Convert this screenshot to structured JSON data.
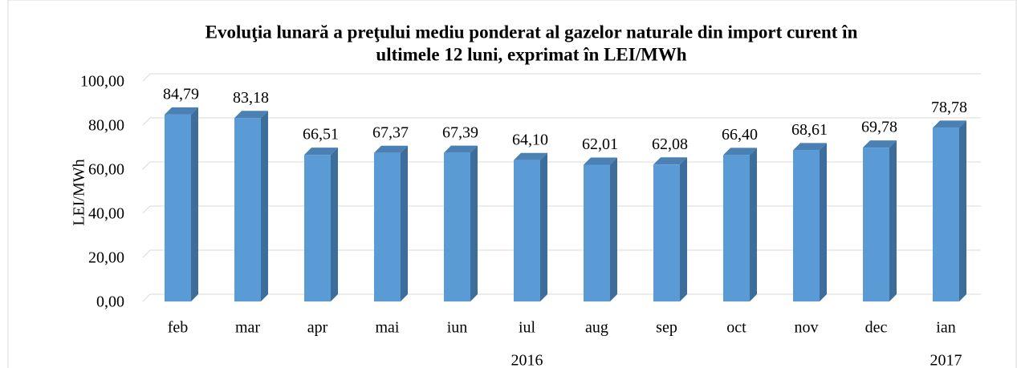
{
  "chart_data": {
    "type": "bar3d",
    "title": [
      "Evoluţia lunară a preţului mediu ponderat al gazelor naturale din import curent în",
      "ultimele 12 luni, exprimat în LEI/MWh"
    ],
    "y_label": "LEI/MWh",
    "categories": [
      "feb",
      "mar",
      "apr",
      "mai",
      "iun",
      "iul",
      "aug",
      "sep",
      "oct",
      "nov",
      "dec",
      "ian"
    ],
    "groups": [
      {
        "name": "2016",
        "count": 11
      },
      {
        "name": "2017",
        "count": 1
      }
    ],
    "values": [
      84.79,
      83.18,
      66.51,
      67.37,
      67.39,
      64.1,
      62.01,
      62.08,
      66.4,
      68.61,
      69.78,
      78.78
    ],
    "value_labels": [
      "84,79",
      "83,18",
      "66,51",
      "67,37",
      "67,39",
      "64,10",
      "62,01",
      "62,08",
      "66,40",
      "68,61",
      "69,78",
      "78,78"
    ],
    "color": "#5b9bd5",
    "ylim": [
      0,
      100
    ],
    "yticks": [
      {
        "value": 0,
        "label": "0,00"
      },
      {
        "value": 20,
        "label": "20,00"
      },
      {
        "value": 40,
        "label": "40,00"
      },
      {
        "value": 60,
        "label": "60,00"
      },
      {
        "value": 80,
        "label": "80,00"
      },
      {
        "value": 100,
        "label": "100,00"
      }
    ],
    "grid": true
  }
}
